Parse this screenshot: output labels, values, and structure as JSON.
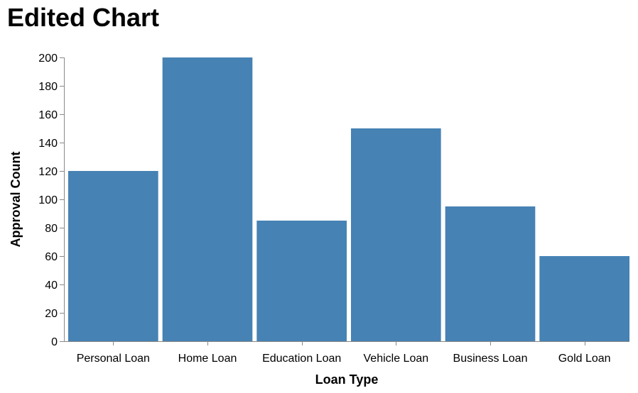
{
  "chart_data": {
    "type": "bar",
    "title": "Edited Chart",
    "xlabel": "Loan Type",
    "ylabel": "Approval Count",
    "categories": [
      "Personal Loan",
      "Home Loan",
      "Education Loan",
      "Vehicle Loan",
      "Business Loan",
      "Gold Loan"
    ],
    "values": [
      120,
      200,
      85,
      150,
      95,
      60
    ],
    "ylim": [
      0,
      200
    ],
    "yticks": [
      0,
      20,
      40,
      60,
      80,
      100,
      120,
      140,
      160,
      180,
      200
    ],
    "grid": false,
    "bar_color": "#4682b4",
    "axis_color": "#888888"
  }
}
